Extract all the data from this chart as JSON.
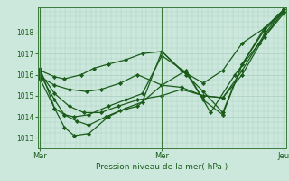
{
  "title": "",
  "xlabel": "Pression niveau de la mer( hPa )",
  "background_color": "#cce8dc",
  "plot_bg_color": "#cce8dc",
  "grid_color": "#aacfc0",
  "line_color": "#1a5c1a",
  "marker_color": "#1a5c1a",
  "ylim": [
    1012.5,
    1019.2
  ],
  "yticks": [
    1013,
    1014,
    1015,
    1016,
    1017,
    1018
  ],
  "day_labels": [
    "Mar",
    "Mer",
    "Jeu"
  ],
  "day_positions": [
    0.0,
    0.5,
    1.0
  ],
  "series": [
    {
      "x": [
        0.0,
        0.06,
        0.1,
        0.17,
        0.22,
        0.28,
        0.35,
        0.42,
        0.5,
        0.58,
        0.67,
        0.75,
        0.83,
        0.92,
        1.0
      ],
      "y": [
        1016.2,
        1015.9,
        1015.8,
        1016.0,
        1016.3,
        1016.5,
        1016.7,
        1017.0,
        1017.1,
        1016.2,
        1015.6,
        1016.2,
        1017.5,
        1018.2,
        1019.1
      ]
    },
    {
      "x": [
        0.0,
        0.06,
        0.12,
        0.19,
        0.25,
        0.33,
        0.4,
        0.5,
        0.58,
        0.67,
        0.75,
        0.83,
        0.92,
        1.0
      ],
      "y": [
        1015.9,
        1015.5,
        1015.3,
        1015.2,
        1015.3,
        1015.6,
        1016.0,
        1015.5,
        1015.4,
        1015.0,
        1014.9,
        1016.0,
        1017.8,
        1019.0
      ]
    },
    {
      "x": [
        0.0,
        0.06,
        0.12,
        0.18,
        0.25,
        0.32,
        0.4,
        0.5,
        0.58,
        0.67,
        0.75,
        0.83,
        0.92,
        1.0
      ],
      "y": [
        1016.1,
        1015.1,
        1014.5,
        1014.2,
        1014.2,
        1014.5,
        1014.8,
        1015.0,
        1015.3,
        1015.0,
        1014.9,
        1016.2,
        1017.9,
        1019.1
      ]
    },
    {
      "x": [
        0.0,
        0.06,
        0.1,
        0.15,
        0.2,
        0.27,
        0.33,
        0.4,
        0.5,
        0.6,
        0.7,
        0.8,
        0.9,
        1.0
      ],
      "y": [
        1016.0,
        1014.8,
        1014.1,
        1013.8,
        1013.6,
        1014.0,
        1014.3,
        1014.5,
        1015.5,
        1016.2,
        1014.2,
        1016.0,
        1017.5,
        1018.9
      ]
    },
    {
      "x": [
        0.0,
        0.06,
        0.1,
        0.14,
        0.2,
        0.28,
        0.35,
        0.42,
        0.5,
        0.6,
        0.67,
        0.75,
        0.83,
        0.92,
        1.0
      ],
      "y": [
        1016.3,
        1014.4,
        1013.5,
        1013.1,
        1013.2,
        1014.0,
        1014.4,
        1014.7,
        1017.1,
        1016.0,
        1015.2,
        1014.2,
        1016.5,
        1018.2,
        1019.0
      ]
    },
    {
      "x": [
        0.0,
        0.06,
        0.1,
        0.14,
        0.2,
        0.28,
        0.35,
        0.42,
        0.5,
        0.6,
        0.67,
        0.75,
        0.83,
        0.92,
        1.0
      ],
      "y": [
        1015.8,
        1014.4,
        1014.1,
        1014.0,
        1014.1,
        1014.5,
        1014.8,
        1015.1,
        1016.9,
        1016.1,
        1014.8,
        1014.1,
        1016.5,
        1018.1,
        1019.0
      ]
    }
  ]
}
